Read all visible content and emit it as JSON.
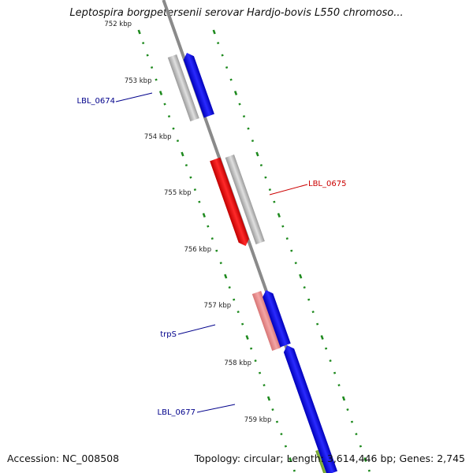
{
  "title": "Leptospira borgpetersenii serovar Hardjo-bovis L550 chromoso...",
  "footer": {
    "accession": "Accession: NC_008508",
    "summary": "Topology: circular; Length: 3,614,446 bp; Genes: 2,745"
  },
  "ticks": [
    {
      "label": "752 kbp"
    },
    {
      "label": "753 kbp"
    },
    {
      "label": "754 kbp"
    },
    {
      "label": "755 kbp"
    },
    {
      "label": "756 kbp"
    },
    {
      "label": "757 kbp"
    },
    {
      "label": "758 kbp"
    },
    {
      "label": "759 kbp"
    }
  ],
  "features": [
    {
      "name": "LBL_0674",
      "color": "#0000ee",
      "strand": "forward"
    },
    {
      "name": "LBL_0675",
      "color": "#ee0000",
      "strand": "reverse"
    },
    {
      "name": "trpS",
      "color": "#0000ee",
      "strand": "forward"
    },
    {
      "name": "LBL_0677",
      "color": "#0000ee",
      "strand": "forward"
    }
  ],
  "colors": {
    "backbone": "#8a8a8a",
    "gc_skew": "#1e8a1e",
    "orf": "#bcbcbc",
    "forward_gene": "#0000ee",
    "reverse_gene": "#ee0000",
    "trna_like": "#ee8a8a",
    "partial_gene": "#8fbf3a",
    "forward_label": "#00008b",
    "reverse_label": "#cc0000"
  }
}
